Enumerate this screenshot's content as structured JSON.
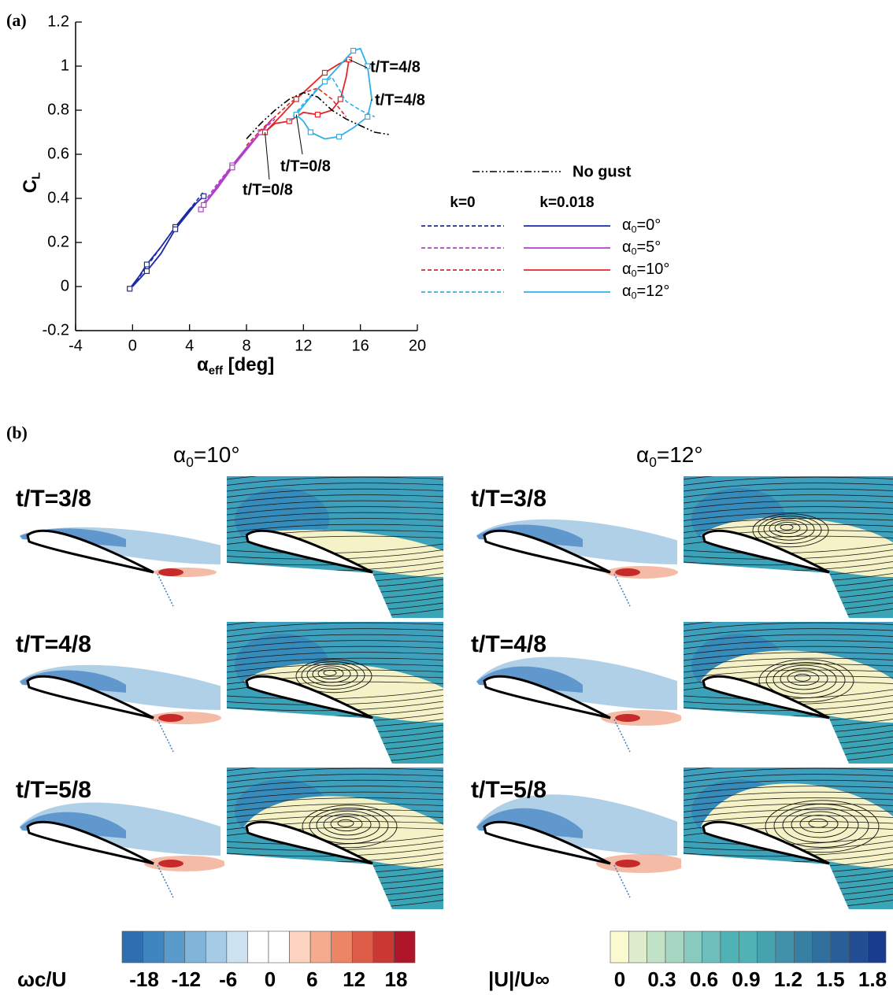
{
  "chart_data": {
    "type": "line",
    "panel_label": "(a)",
    "x_label": {
      "main": "α",
      "sub": "eff",
      "suffix": " [deg]"
    },
    "y_label": {
      "main": "C",
      "sub": "L"
    },
    "xlim": [
      -4,
      20
    ],
    "xticks": [
      -4,
      0,
      4,
      8,
      12,
      16,
      20
    ],
    "ylim": [
      -0.2,
      1.2
    ],
    "yticks": [
      -0.2,
      0,
      0.2,
      0.4,
      0.6,
      0.8,
      1,
      1.2
    ],
    "series": [
      {
        "name": "No gust",
        "color": "#000000",
        "x": [
          8,
          9,
          10,
          11,
          12,
          13,
          14,
          15,
          16,
          17,
          18
        ],
        "values": [
          0.67,
          0.74,
          0.8,
          0.85,
          0.88,
          0.86,
          0.8,
          0.76,
          0.73,
          0.7,
          0.69
        ]
      }
    ],
    "legend": {
      "columns": [
        "k=0",
        "k=0.018"
      ]
    },
    "cases": [
      {
        "label": {
          "main": "α",
          "sub": "0",
          "rest": "=0°"
        },
        "color": "#1c2aa6",
        "lines": [
          {
            "x": [
              0,
              1,
              2,
              3,
              4,
              5
            ],
            "values": [
              0,
              0.09,
              0.18,
              0.27,
              0.35,
              0.43
            ]
          },
          {
            "x": [
              -0.2,
              0.5,
              1,
              2,
              3,
              4,
              5,
              4.5,
              3,
              2,
              1,
              0
            ],
            "values": [
              -0.01,
              0.05,
              0.1,
              0.18,
              0.27,
              0.35,
              0.41,
              0.38,
              0.26,
              0.15,
              0.07,
              0
            ]
          }
        ]
      },
      {
        "label": {
          "main": "α",
          "sub": "0",
          "rest": "=5°"
        },
        "color": "#b040c8",
        "lines": [
          {
            "x": [
              5,
              6,
              7,
              8,
              9,
              10
            ],
            "values": [
              0.38,
              0.47,
              0.55,
              0.63,
              0.7,
              0.76
            ]
          },
          {
            "x": [
              4.8,
              6,
              7,
              8,
              9,
              9.8,
              9,
              8,
              7,
              6,
              5
            ],
            "values": [
              0.35,
              0.46,
              0.55,
              0.63,
              0.7,
              0.76,
              0.7,
              0.62,
              0.54,
              0.45,
              0.37
            ]
          }
        ]
      },
      {
        "label": {
          "main": "α",
          "sub": "0",
          "rest": "=10°"
        },
        "color": "#e02828",
        "lines": [
          {
            "x": [
              8,
              9,
              10,
              11,
              12,
              13,
              14,
              15
            ],
            "values": [
              0.64,
              0.71,
              0.77,
              0.83,
              0.88,
              0.9,
              0.85,
              0.77
            ]
          },
          {
            "x": [
              9.3,
              10.5,
              11.5,
              12.5,
              13.5,
              14.5,
              15.2,
              15,
              14.6,
              14,
              13,
              12,
              11,
              10,
              9.3
            ],
            "values": [
              0.7,
              0.78,
              0.85,
              0.91,
              0.97,
              1.01,
              1.03,
              0.95,
              0.85,
              0.8,
              0.78,
              0.79,
              0.75,
              0.74,
              0.7
            ]
          }
        ]
      },
      {
        "label": {
          "main": "α",
          "sub": "0",
          "rest": "=12°"
        },
        "color": "#2fb0e8",
        "lines": [
          {
            "x": [
              11,
              12,
              13,
              14,
              15,
              16,
              17
            ],
            "values": [
              0.75,
              0.83,
              0.9,
              0.95,
              0.84,
              0.8,
              0.77
            ]
          },
          {
            "x": [
              11.5,
              12.5,
              13.5,
              14.5,
              15.5,
              16,
              16.5,
              16.8,
              16.5,
              15.5,
              14.5,
              13.5,
              12.5,
              12,
              11.5
            ],
            "values": [
              0.78,
              0.86,
              0.93,
              1,
              1.07,
              1.08,
              1,
              0.85,
              0.77,
              0.72,
              0.68,
              0.67,
              0.7,
              0.75,
              0.78
            ]
          }
        ]
      }
    ],
    "annotations": [
      {
        "text": "t/T=4/8",
        "color": "#e02828"
      },
      {
        "text": "t/T=4/8",
        "color": "#2fb0e8"
      },
      {
        "text": "t/T=0/8",
        "color": "#2fb0e8"
      },
      {
        "text": "t/T=0/8",
        "color": "#e02828"
      }
    ]
  },
  "panel_b": {
    "panel_label": "(b)",
    "columns": [
      {
        "main": "α",
        "sub": "0",
        "rest": "=10°"
      },
      {
        "main": "α",
        "sub": "0",
        "rest": "=12°"
      }
    ],
    "rows": [
      "t/T=3/8",
      "t/T=4/8",
      "t/T=5/8"
    ],
    "colorbars": [
      {
        "label": "ωc/U",
        "ticks": [
          -18,
          -12,
          -6,
          0,
          6,
          12,
          18
        ]
      },
      {
        "label": "|U|/U∞",
        "ticks": [
          0,
          0.3,
          0.6,
          0.9,
          1.2,
          1.5,
          1.8
        ]
      }
    ]
  }
}
